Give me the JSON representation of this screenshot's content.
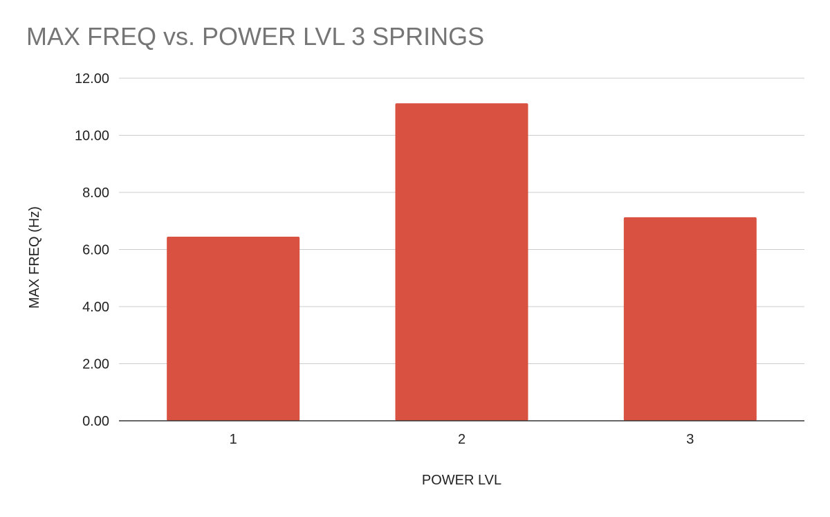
{
  "chart_data": {
    "type": "bar",
    "title": "MAX FREQ vs. POWER LVL 3 SPRINGS",
    "xlabel": "POWER LVL",
    "ylabel": "MAX FREQ (Hz)",
    "categories": [
      "1",
      "2",
      "3"
    ],
    "values": [
      6.45,
      11.12,
      7.13
    ],
    "ylim": [
      0,
      12
    ],
    "yticks": [
      "0.00",
      "2.00",
      "4.00",
      "6.00",
      "8.00",
      "10.00",
      "12.00"
    ],
    "grid": true,
    "legend": "none",
    "bar_color": "#d95140",
    "title_color": "#757575",
    "grid_color": "#cccccc",
    "axis_color": "#333333",
    "text_color": "#222222"
  }
}
